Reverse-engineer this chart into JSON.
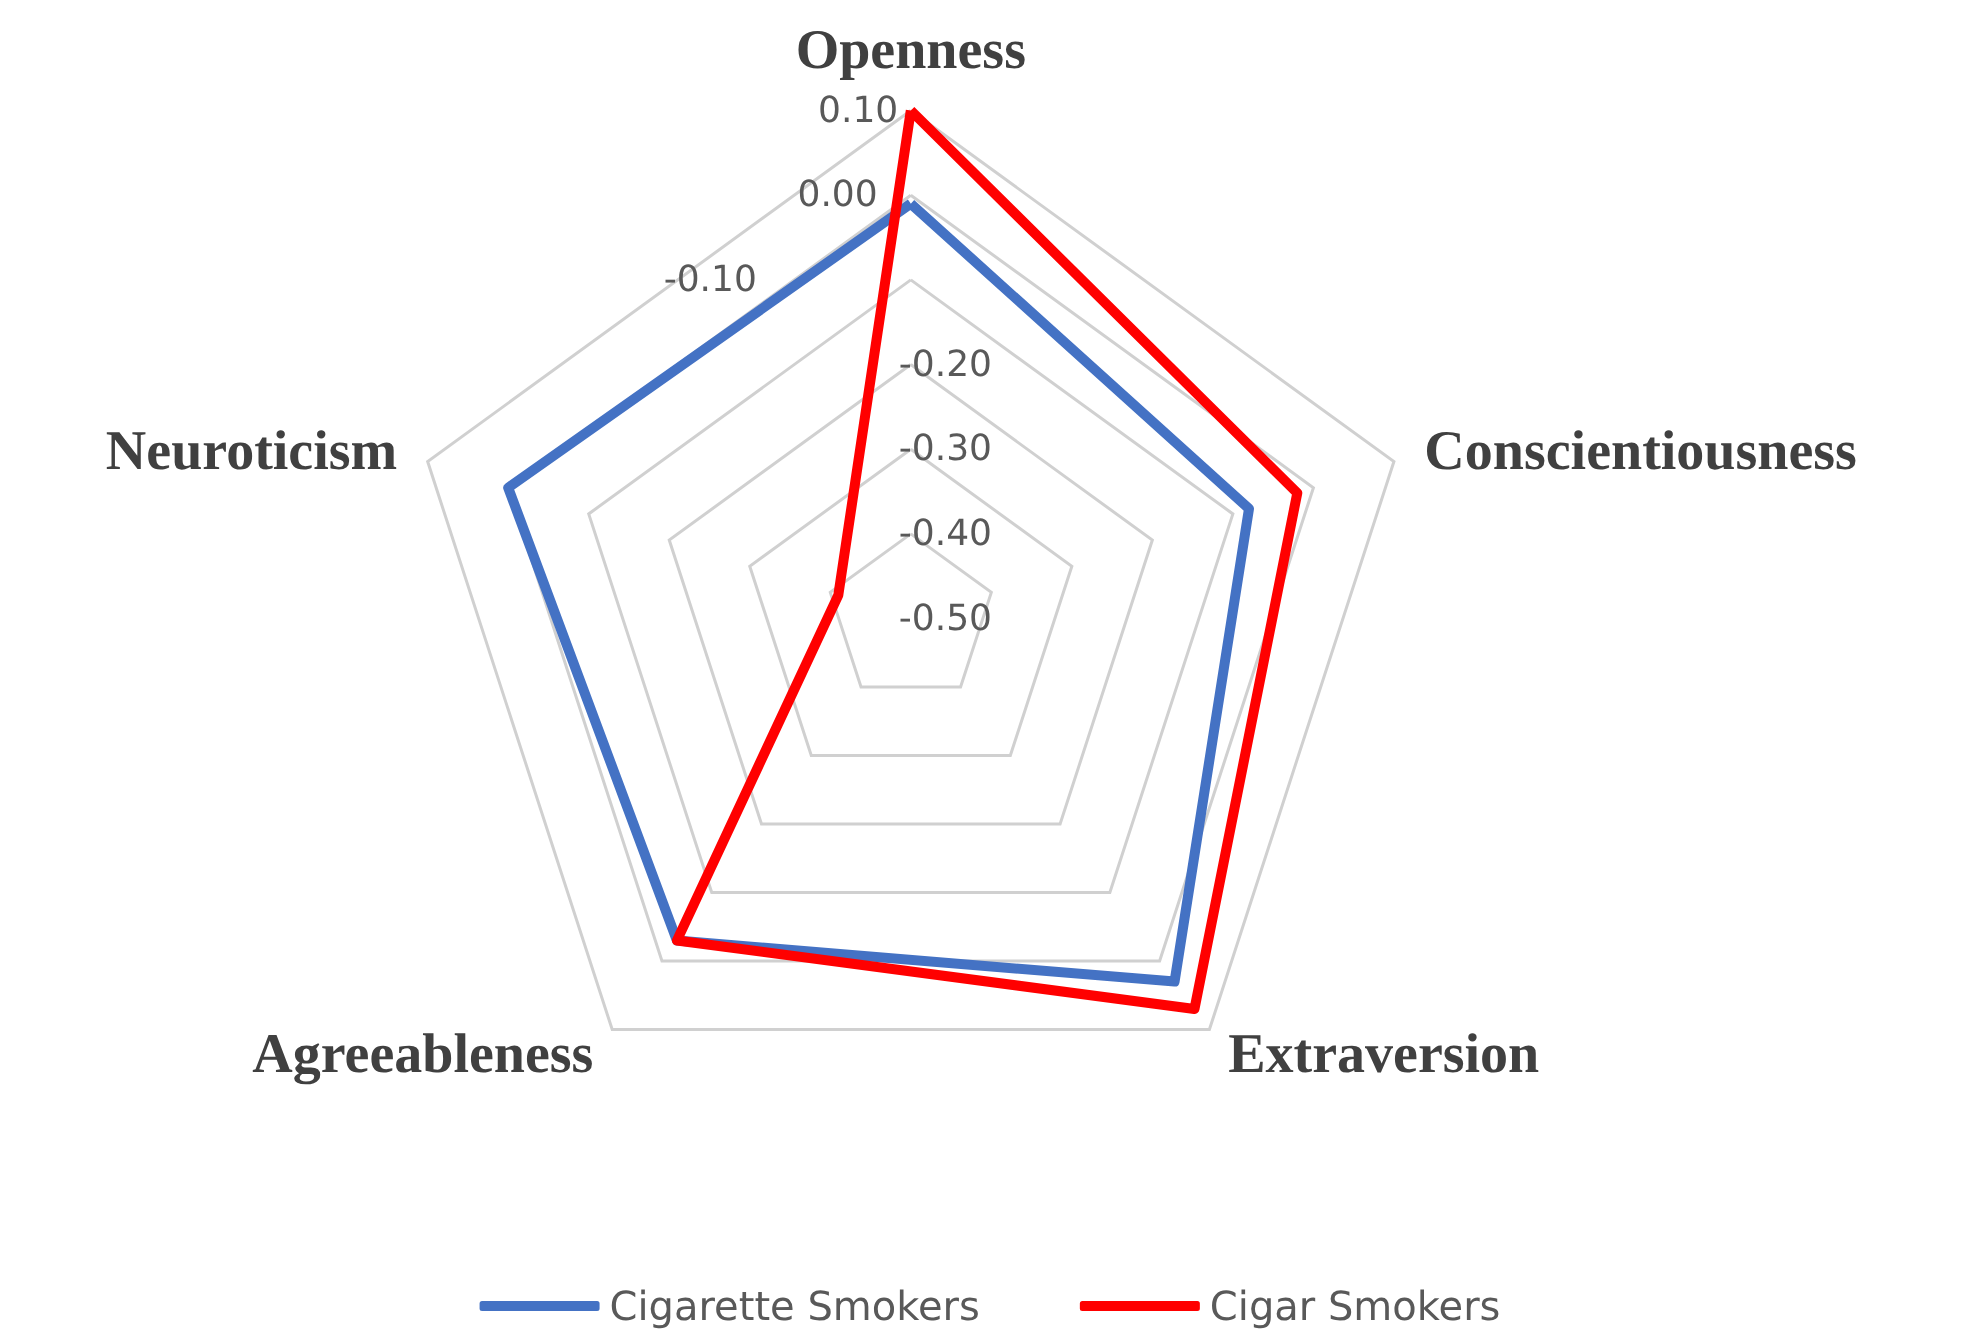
{
  "chart_data": {
    "type": "radar",
    "categories": [
      "Openness",
      "Conscientiousness",
      "Extraversion",
      "Agreeableness",
      "Neuroticism"
    ],
    "series": [
      {
        "name": "Cigarette Smokers",
        "color": "#4472c4",
        "values": [
          -0.01,
          -0.08,
          0.03,
          -0.03,
          0.0
        ]
      },
      {
        "name": "Cigar Smokers",
        "color": "#ff0000",
        "values": [
          0.1,
          -0.02,
          0.07,
          -0.03,
          -0.41
        ]
      }
    ],
    "ylim": [
      -0.5,
      0.1
    ],
    "yticks": [
      {
        "value": -0.5,
        "label": "-0.50"
      },
      {
        "value": -0.4,
        "label": "-0.40"
      },
      {
        "value": -0.3,
        "label": "-0.30"
      },
      {
        "value": -0.2,
        "label": "-0.20"
      },
      {
        "value": -0.1,
        "label": "-0.10"
      },
      {
        "value": 0,
        "label": "0.00"
      },
      {
        "value": 0.1,
        "label": "0.10"
      }
    ],
    "grid": true,
    "legend": "bottom",
    "marker": "none",
    "line_style": "solid"
  }
}
